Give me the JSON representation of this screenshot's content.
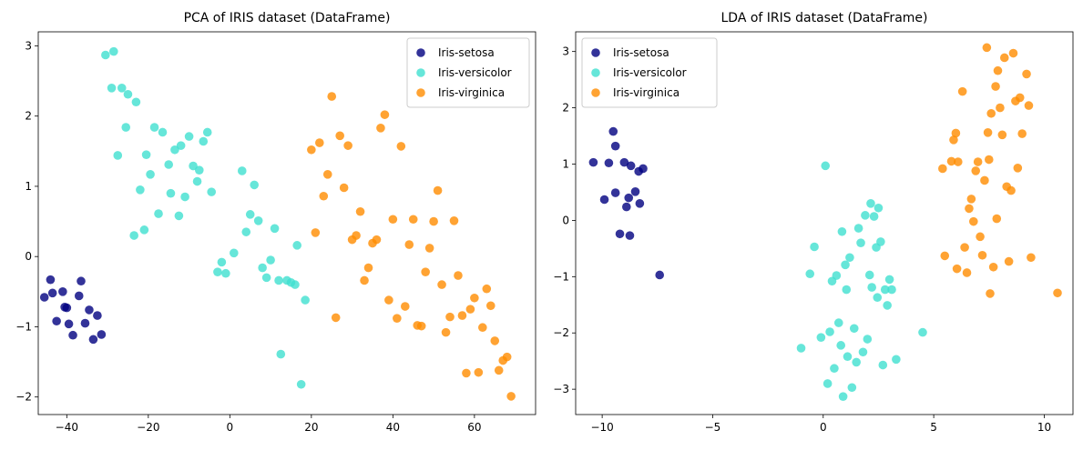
{
  "chart_data": [
    {
      "type": "scatter",
      "title": "PCA of IRIS dataset (DataFrame)",
      "xlabel": "",
      "ylabel": "",
      "xlim": [
        -47,
        75
      ],
      "ylim": [
        -2.25,
        3.2
      ],
      "xticks": [
        -40,
        -20,
        0,
        20,
        40,
        60
      ],
      "yticks": [
        -2,
        -1,
        0,
        1,
        2,
        3
      ],
      "grid": false,
      "legend_position": "top-right",
      "series": [
        {
          "name": "Iris-setosa",
          "color": "#000080",
          "points": [
            [
              -45.5,
              -0.58
            ],
            [
              -44,
              -0.33
            ],
            [
              -43.5,
              -0.52
            ],
            [
              -42.5,
              -0.92
            ],
            [
              -41,
              -0.5
            ],
            [
              -40.5,
              -0.72
            ],
            [
              -40,
              -0.73
            ],
            [
              -39.5,
              -0.96
            ],
            [
              -38.5,
              -1.12
            ],
            [
              -37,
              -0.56
            ],
            [
              -36.5,
              -0.35
            ],
            [
              -35.5,
              -0.95
            ],
            [
              -34.5,
              -0.76
            ],
            [
              -33.5,
              -1.18
            ],
            [
              -32.5,
              -0.84
            ],
            [
              -31.5,
              -1.11
            ]
          ]
        },
        {
          "name": "Iris-versicolor",
          "color": "#40e0d0",
          "points": [
            [
              -30.5,
              2.87
            ],
            [
              -29,
              2.4
            ],
            [
              -28.5,
              2.92
            ],
            [
              -27.5,
              1.44
            ],
            [
              -26.5,
              2.4
            ],
            [
              -25.5,
              1.84
            ],
            [
              -25,
              2.31
            ],
            [
              -23.5,
              0.3
            ],
            [
              -23,
              2.2
            ],
            [
              -22,
              0.95
            ],
            [
              -21,
              0.38
            ],
            [
              -20.5,
              1.45
            ],
            [
              -19.5,
              1.17
            ],
            [
              -18.5,
              1.84
            ],
            [
              -17.5,
              0.61
            ],
            [
              -16.5,
              1.77
            ],
            [
              -15,
              1.31
            ],
            [
              -14.5,
              0.9
            ],
            [
              -13.5,
              1.52
            ],
            [
              -12.5,
              0.58
            ],
            [
              -12,
              1.58
            ],
            [
              -11,
              0.85
            ],
            [
              -10,
              1.71
            ],
            [
              -9,
              1.29
            ],
            [
              -8,
              1.07
            ],
            [
              -7.5,
              1.23
            ],
            [
              -6.5,
              1.64
            ],
            [
              -5.5,
              1.77
            ],
            [
              -4.5,
              0.92
            ],
            [
              -3,
              -0.22
            ],
            [
              -2,
              -0.08
            ],
            [
              -1,
              -0.24
            ],
            [
              1,
              0.05
            ],
            [
              3,
              1.22
            ],
            [
              4,
              0.35
            ],
            [
              5,
              0.6
            ],
            [
              6,
              1.02
            ],
            [
              7,
              0.51
            ],
            [
              8,
              -0.16
            ],
            [
              9,
              -0.3
            ],
            [
              10,
              -0.05
            ],
            [
              11,
              0.4
            ],
            [
              12,
              -0.34
            ],
            [
              12.5,
              -1.39
            ],
            [
              14,
              -0.34
            ],
            [
              15,
              -0.37
            ],
            [
              16,
              -0.4
            ],
            [
              16.5,
              0.16
            ],
            [
              17.5,
              -1.82
            ],
            [
              18.5,
              -0.62
            ]
          ]
        },
        {
          "name": "Iris-virginica",
          "color": "#ff8c00",
          "points": [
            [
              20,
              1.52
            ],
            [
              21,
              0.34
            ],
            [
              22,
              1.62
            ],
            [
              23,
              0.86
            ],
            [
              24,
              1.17
            ],
            [
              25,
              2.28
            ],
            [
              26,
              -0.87
            ],
            [
              27,
              1.72
            ],
            [
              28,
              0.98
            ],
            [
              29,
              1.58
            ],
            [
              30,
              0.24
            ],
            [
              31,
              0.3
            ],
            [
              32,
              0.64
            ],
            [
              33,
              -0.34
            ],
            [
              34,
              -0.16
            ],
            [
              35,
              0.19
            ],
            [
              36,
              0.24
            ],
            [
              37,
              1.83
            ],
            [
              38,
              2.02
            ],
            [
              39,
              -0.62
            ],
            [
              40,
              0.53
            ],
            [
              41,
              -0.88
            ],
            [
              42,
              1.57
            ],
            [
              43,
              -0.71
            ],
            [
              44,
              0.17
            ],
            [
              45,
              0.53
            ],
            [
              46,
              -0.98
            ],
            [
              47,
              -0.99
            ],
            [
              48,
              -0.22
            ],
            [
              49,
              0.12
            ],
            [
              50,
              0.5
            ],
            [
              51,
              0.94
            ],
            [
              52,
              -0.4
            ],
            [
              53,
              -1.08
            ],
            [
              54,
              -0.86
            ],
            [
              55,
              0.51
            ],
            [
              56,
              -0.27
            ],
            [
              57,
              -0.84
            ],
            [
              58,
              -1.66
            ],
            [
              59,
              -0.75
            ],
            [
              60,
              -0.59
            ],
            [
              61,
              -1.65
            ],
            [
              62,
              -1.01
            ],
            [
              63,
              -0.46
            ],
            [
              64,
              -0.7
            ],
            [
              65,
              -1.2
            ],
            [
              66,
              -1.62
            ],
            [
              67,
              -1.48
            ],
            [
              68,
              -1.43
            ],
            [
              69,
              -1.99
            ]
          ]
        }
      ]
    },
    {
      "type": "scatter",
      "title": "LDA of IRIS dataset (DataFrame)",
      "xlabel": "",
      "ylabel": "",
      "xlim": [
        -11.2,
        11.3
      ],
      "ylim": [
        -3.45,
        3.35
      ],
      "xticks": [
        -10,
        -5,
        0,
        5,
        10
      ],
      "yticks": [
        -3,
        -2,
        -1,
        0,
        1,
        2,
        3
      ],
      "grid": false,
      "legend_position": "top-left",
      "series": [
        {
          "name": "Iris-setosa",
          "color": "#000080",
          "points": [
            [
              -10.4,
              1.03
            ],
            [
              -9.9,
              0.37
            ],
            [
              -9.7,
              1.02
            ],
            [
              -9.5,
              1.58
            ],
            [
              -9.4,
              1.32
            ],
            [
              -9.4,
              0.49
            ],
            [
              -9.2,
              -0.24
            ],
            [
              -9.0,
              1.03
            ],
            [
              -8.9,
              0.24
            ],
            [
              -8.8,
              0.4
            ],
            [
              -8.75,
              -0.27
            ],
            [
              -8.7,
              0.97
            ],
            [
              -8.5,
              0.51
            ],
            [
              -8.35,
              0.87
            ],
            [
              -8.3,
              0.3
            ],
            [
              -8.15,
              0.92
            ],
            [
              -7.4,
              -0.97
            ]
          ]
        },
        {
          "name": "Iris-versicolor",
          "color": "#40e0d0",
          "points": [
            [
              -1.0,
              -2.27
            ],
            [
              -0.6,
              -0.95
            ],
            [
              -0.4,
              -0.47
            ],
            [
              -0.1,
              -2.08
            ],
            [
              0.1,
              0.97
            ],
            [
              0.2,
              -2.9
            ],
            [
              0.3,
              -1.98
            ],
            [
              0.4,
              -1.08
            ],
            [
              0.5,
              -2.63
            ],
            [
              0.6,
              -0.98
            ],
            [
              0.7,
              -1.82
            ],
            [
              0.8,
              -2.22
            ],
            [
              0.85,
              -0.2
            ],
            [
              0.9,
              -3.13
            ],
            [
              1.0,
              -0.79
            ],
            [
              1.05,
              -1.23
            ],
            [
              1.1,
              -2.42
            ],
            [
              1.2,
              -0.66
            ],
            [
              1.3,
              -2.97
            ],
            [
              1.4,
              -1.92
            ],
            [
              1.5,
              -2.52
            ],
            [
              1.6,
              -0.14
            ],
            [
              1.7,
              -0.4
            ],
            [
              1.8,
              -2.34
            ],
            [
              1.9,
              0.09
            ],
            [
              2.0,
              -2.11
            ],
            [
              2.1,
              -0.97
            ],
            [
              2.15,
              0.3
            ],
            [
              2.2,
              -1.19
            ],
            [
              2.3,
              0.07
            ],
            [
              2.4,
              -0.48
            ],
            [
              2.45,
              -1.37
            ],
            [
              2.5,
              0.22
            ],
            [
              2.6,
              -0.38
            ],
            [
              2.7,
              -2.57
            ],
            [
              2.8,
              -1.23
            ],
            [
              2.9,
              -1.51
            ],
            [
              3.0,
              -1.05
            ],
            [
              3.1,
              -1.23
            ],
            [
              3.3,
              -2.47
            ],
            [
              4.5,
              -1.99
            ]
          ]
        },
        {
          "name": "Iris-virginica",
          "color": "#ff8c00",
          "points": [
            [
              5.4,
              0.92
            ],
            [
              5.5,
              -0.63
            ],
            [
              5.8,
              1.05
            ],
            [
              5.9,
              1.43
            ],
            [
              6.0,
              1.55
            ],
            [
              6.05,
              -0.86
            ],
            [
              6.1,
              1.04
            ],
            [
              6.3,
              2.29
            ],
            [
              6.4,
              -0.48
            ],
            [
              6.5,
              -0.93
            ],
            [
              6.6,
              0.21
            ],
            [
              6.7,
              0.38
            ],
            [
              6.8,
              -0.02
            ],
            [
              6.9,
              0.88
            ],
            [
              7.0,
              1.04
            ],
            [
              7.1,
              -0.29
            ],
            [
              7.2,
              -0.62
            ],
            [
              7.3,
              0.71
            ],
            [
              7.4,
              3.07
            ],
            [
              7.45,
              1.56
            ],
            [
              7.5,
              1.08
            ],
            [
              7.55,
              -1.3
            ],
            [
              7.6,
              1.9
            ],
            [
              7.7,
              -0.83
            ],
            [
              7.8,
              2.38
            ],
            [
              7.85,
              0.03
            ],
            [
              7.9,
              2.66
            ],
            [
              8.0,
              2.0
            ],
            [
              8.1,
              1.52
            ],
            [
              8.2,
              2.89
            ],
            [
              8.3,
              0.6
            ],
            [
              8.4,
              -0.73
            ],
            [
              8.5,
              0.53
            ],
            [
              8.6,
              2.97
            ],
            [
              8.7,
              2.12
            ],
            [
              8.8,
              0.93
            ],
            [
              8.9,
              2.18
            ],
            [
              9.0,
              1.54
            ],
            [
              9.2,
              2.6
            ],
            [
              9.3,
              2.04
            ],
            [
              9.4,
              -0.66
            ],
            [
              10.6,
              -1.29
            ]
          ]
        }
      ]
    }
  ]
}
